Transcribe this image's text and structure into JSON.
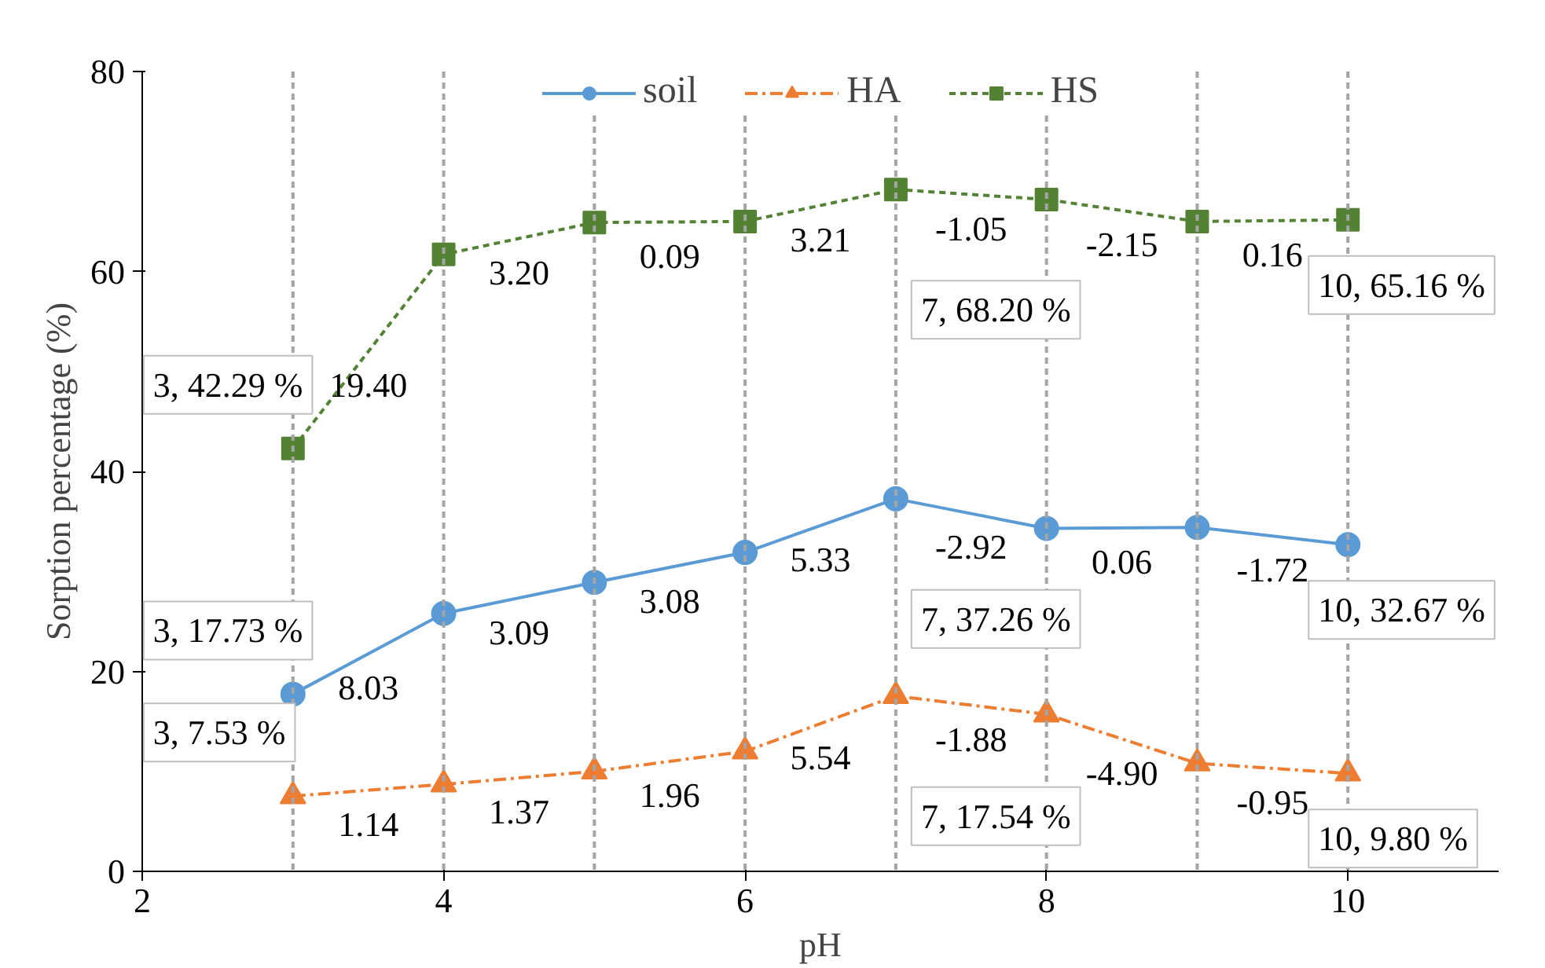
{
  "chart_data": {
    "type": "line",
    "xlabel": "pH",
    "ylabel": "Sorption percentage (%)",
    "x": [
      3,
      4,
      5,
      6,
      7,
      8,
      9,
      10
    ],
    "series": [
      {
        "name": "soil",
        "color": "#5b9bd5",
        "marker": "circle",
        "line_style": "solid",
        "values": [
          17.73,
          25.8,
          28.9,
          31.9,
          37.26,
          34.3,
          34.4,
          32.67
        ]
      },
      {
        "name": "HA",
        "color": "#ed7d31",
        "marker": "triangle",
        "line_style": "dashdot",
        "values": [
          7.53,
          8.7,
          10.0,
          12.0,
          17.54,
          15.7,
          10.8,
          9.8
        ]
      },
      {
        "name": "HS",
        "color": "#548235",
        "marker": "square",
        "line_style": "dashed",
        "values": [
          42.29,
          61.7,
          64.9,
          65.0,
          68.2,
          67.2,
          65.0,
          65.16
        ]
      }
    ],
    "xlim": [
      2,
      11
    ],
    "xticks": [
      2,
      4,
      6,
      8,
      10
    ],
    "ylim": [
      0,
      80
    ],
    "yticks": [
      0,
      20,
      40,
      60,
      80
    ],
    "grid": false,
    "legend": "top",
    "ref_lines": [
      {
        "axis": "x",
        "value": 3,
        "color": "#a5a5a5",
        "line_style": "dashed"
      },
      {
        "axis": "x",
        "value": 4,
        "color": "#a5a5a5",
        "line_style": "dashed"
      },
      {
        "axis": "x",
        "value": 5,
        "color": "#a5a5a5",
        "line_style": "dashed"
      },
      {
        "axis": "x",
        "value": 6,
        "color": "#a5a5a5",
        "line_style": "dashed"
      },
      {
        "axis": "x",
        "value": 7,
        "color": "#a5a5a5",
        "line_style": "dashed"
      },
      {
        "axis": "x",
        "value": 8,
        "color": "#a5a5a5",
        "line_style": "dashed"
      },
      {
        "axis": "x",
        "value": 9,
        "color": "#a5a5a5",
        "line_style": "dashed"
      },
      {
        "axis": "x",
        "value": 10,
        "color": "#a5a5a5",
        "line_style": "dashed"
      }
    ],
    "annotations": [
      {
        "text": "3, 17.73 %",
        "x": 3,
        "y": 17.73
      },
      {
        "text": "7, 37.26 %",
        "x": 7,
        "y": 37.26
      },
      {
        "text": "10, 32.67 %",
        "x": 10,
        "y": 32.67
      },
      {
        "text": "3, 7.53 %",
        "x": 3,
        "y": 7.53
      },
      {
        "text": "7, 17.54 %",
        "x": 7,
        "y": 17.54
      },
      {
        "text": "10, 9.80 %",
        "x": 10,
        "y": 9.8
      },
      {
        "text": "3, 42.29 %",
        "x": 3,
        "y": 42.29
      },
      {
        "text": "7, 68.20 %",
        "x": 7,
        "y": 68.2
      },
      {
        "text": "10, 65.16 %",
        "x": 10,
        "y": 65.16
      },
      {
        "text": "8.03",
        "x": 3.5,
        "y": 21.745
      },
      {
        "text": "3.09",
        "x": 4.5,
        "y": 27.305
      },
      {
        "text": "3.08",
        "x": 5.5,
        "y": 30.39
      },
      {
        "text": "5.33",
        "x": 6.5,
        "y": 34.595
      },
      {
        "text": "-2.92",
        "x": 7.5,
        "y": 35.8
      },
      {
        "text": "0.06",
        "x": 8.5,
        "y": 34.37
      },
      {
        "text": "-1.72",
        "x": 9.5,
        "y": 33.535
      },
      {
        "text": "1.14",
        "x": 3.5,
        "y": 8.1
      },
      {
        "text": "1.37",
        "x": 4.5,
        "y": 9.355
      },
      {
        "text": "1.96",
        "x": 5.5,
        "y": 11.02
      },
      {
        "text": "5.54",
        "x": 6.5,
        "y": 14.77
      },
      {
        "text": "-1.88",
        "x": 7.5,
        "y": 16.6
      },
      {
        "text": "-4.90",
        "x": 8.5,
        "y": 13.21
      },
      {
        "text": "-0.95",
        "x": 9.5,
        "y": 10.28
      },
      {
        "text": "19.40",
        "x": 3.5,
        "y": 51.99
      },
      {
        "text": "3.20",
        "x": 4.5,
        "y": 63.29
      },
      {
        "text": "0.09",
        "x": 5.5,
        "y": 64.935
      },
      {
        "text": "3.21",
        "x": 6.5,
        "y": 66.59
      },
      {
        "text": "-1.05",
        "x": 7.5,
        "y": 67.675
      },
      {
        "text": "-2.15",
        "x": 8.5,
        "y": 66.075
      },
      {
        "text": "0.16",
        "x": 9.5,
        "y": 65.08
      }
    ]
  }
}
